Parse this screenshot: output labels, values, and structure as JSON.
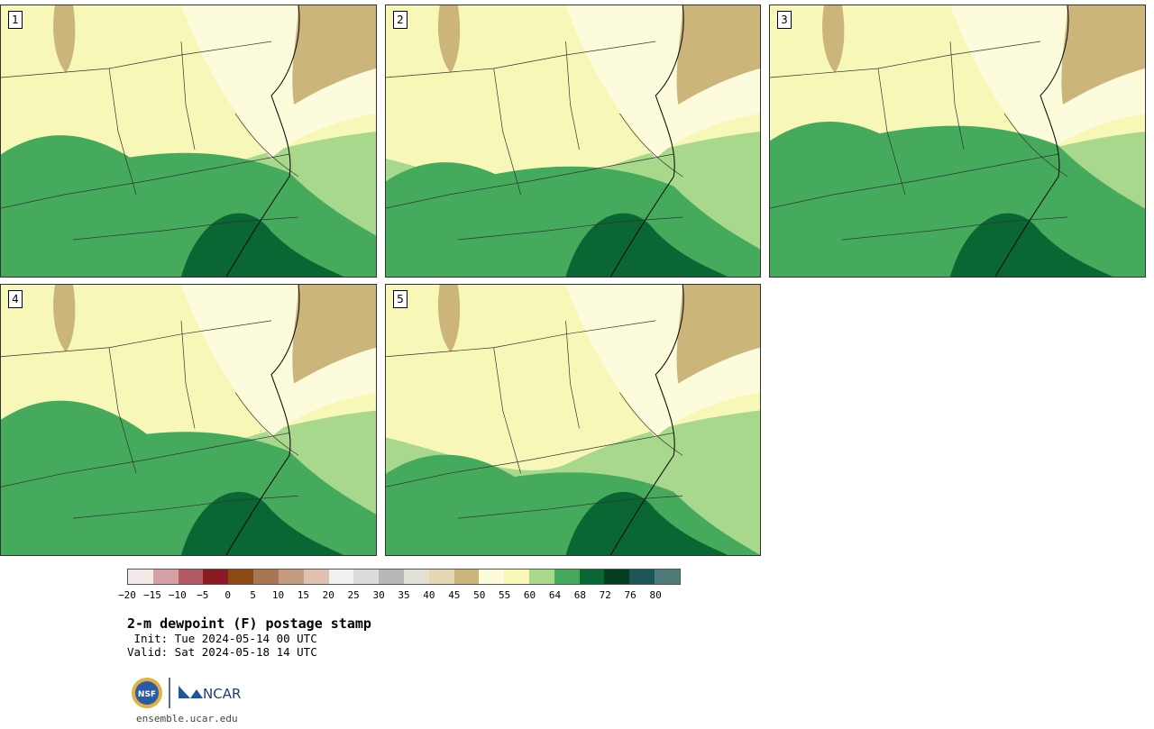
{
  "panels": [
    {
      "label": "1"
    },
    {
      "label": "2"
    },
    {
      "label": "3"
    },
    {
      "label": "4"
    },
    {
      "label": "5"
    }
  ],
  "colorbar": {
    "colors": [
      "#f5e8e8",
      "#d4a0a6",
      "#b45a64",
      "#8b1a22",
      "#8a4a14",
      "#a87650",
      "#c49c80",
      "#e0c0b0",
      "#f0f0f0",
      "#dcdcdc",
      "#b8b8b8",
      "#e0e0d4",
      "#e6d8b4",
      "#cbb57a",
      "#fcfcdc",
      "#f7f7b8",
      "#a8d88c",
      "#46aa5c",
      "#0a6632",
      "#063c22",
      "#1c5658",
      "#4e7a78"
    ],
    "tick_labels": [
      "−20",
      "−15",
      "−10",
      "−5",
      "0",
      "5",
      "10",
      "15",
      "20",
      "25",
      "30",
      "35",
      "40",
      "45",
      "50",
      "55",
      "60",
      "64",
      "68",
      "72",
      "76",
      "80"
    ]
  },
  "title": "2-m dewpoint (F) postage stamp",
  "init": " Init: Tue 2024-05-14 00 UTC",
  "valid": "Valid: Sat 2024-05-18 14 UTC",
  "logos": {
    "nsf": "NSF",
    "ncar": "NCAR"
  },
  "site": "ensemble.ucar.edu"
}
